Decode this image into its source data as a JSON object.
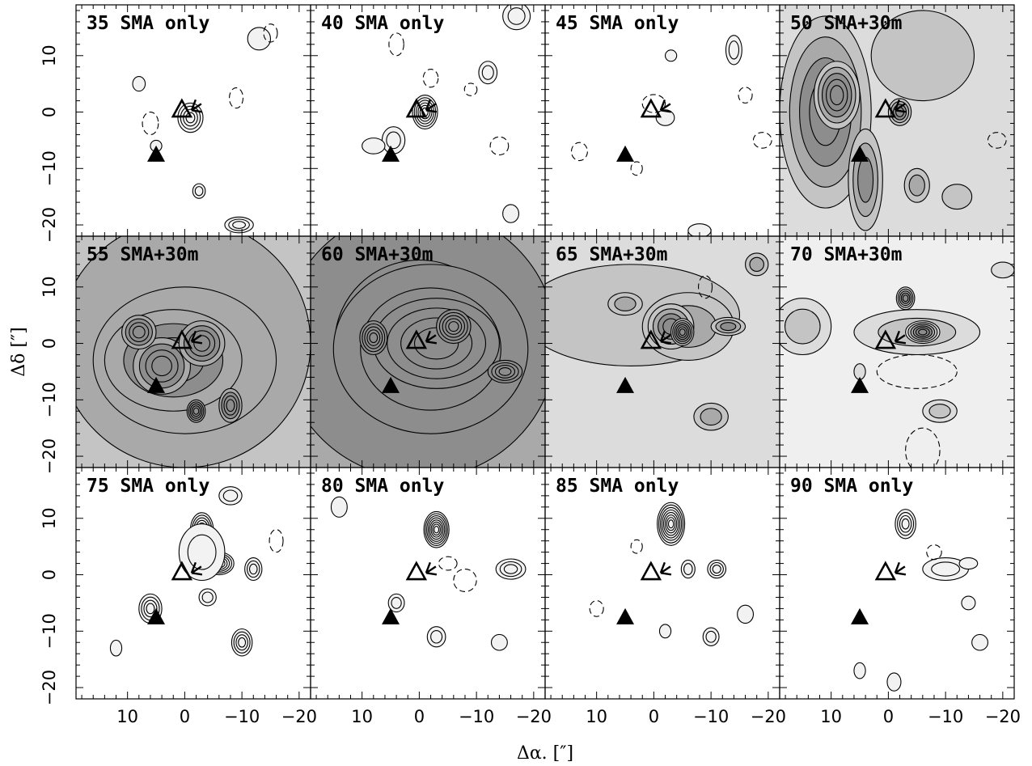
{
  "chart_data": {
    "type": "contour",
    "xlabel": "Δα. [″]",
    "ylabel": "Δδ [″]",
    "x_ticks": [
      "10",
      "0",
      "−10",
      "−20"
    ],
    "y_ticks": [
      "10",
      "0",
      "−10",
      "−20"
    ],
    "xlim": [
      19,
      -22
    ],
    "ylim": [
      -22,
      19
    ],
    "grid": "4 columns × 3 rows, shared axes",
    "markers": {
      "open_triangle": [
        0.5,
        0.5
      ],
      "star": [
        -1.2,
        0.6
      ],
      "filled_triangle": [
        5.0,
        -7.5
      ]
    },
    "panels": [
      {
        "label": "35 SMA only",
        "mode": "sma",
        "shade": 0
      },
      {
        "label": "40 SMA only",
        "mode": "sma",
        "shade": 0
      },
      {
        "label": "45 SMA only",
        "mode": "sma",
        "shade": 0
      },
      {
        "label": "50 SMA+30m",
        "mode": "combined",
        "shade": 2
      },
      {
        "label": "55 SMA+30m",
        "mode": "combined",
        "shade": 3
      },
      {
        "label": "60 SMA+30m",
        "mode": "combined",
        "shade": 4
      },
      {
        "label": "65 SMA+30m",
        "mode": "combined",
        "shade": 2
      },
      {
        "label": "70 SMA+30m",
        "mode": "combined",
        "shade": 1
      },
      {
        "label": "75 SMA only",
        "mode": "sma",
        "shade": 0
      },
      {
        "label": "80 SMA only",
        "mode": "sma",
        "shade": 0
      },
      {
        "label": "85 SMA only",
        "mode": "sma",
        "shade": 0
      },
      {
        "label": "90 SMA only",
        "mode": "sma",
        "shade": 0
      }
    ],
    "colors": {
      "line": "#000000",
      "fill_levels": [
        "#ffffff",
        "#efefef",
        "#dcdcdc",
        "#c4c4c4",
        "#a9a9a9",
        "#8d8d8d"
      ]
    }
  }
}
